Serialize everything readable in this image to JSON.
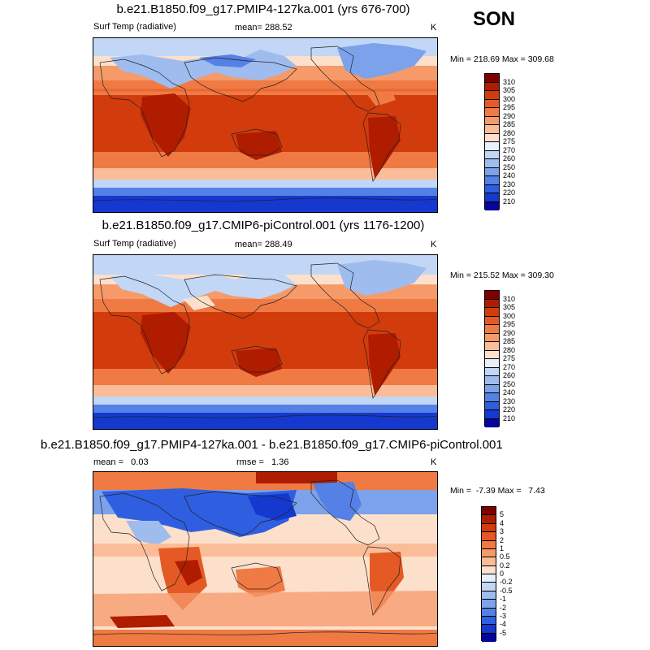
{
  "season": "SON",
  "panels": [
    {
      "title": "b.e21.B1850.f09_g17.PMIP4-127ka.001 (yrs 676-700)",
      "left": "Surf Temp (radiative)",
      "center": "mean= 288.52",
      "right": "K",
      "minmax": "Min = 218.69 Max = 309.68",
      "colorbar": {
        "labels": [
          "310",
          "305",
          "300",
          "295",
          "290",
          "285",
          "280",
          "275",
          "270",
          "260",
          "250",
          "240",
          "230",
          "220",
          "210"
        ],
        "colors": [
          "#7f0000",
          "#b01c00",
          "#d23b0c",
          "#e55a24",
          "#ef7a44",
          "#f69a6a",
          "#fbbd98",
          "#fde0cb",
          "#e8f0fb",
          "#c2d6f5",
          "#9fbcef",
          "#7ba2ea",
          "#5580e6",
          "#2f5ee0",
          "#1538cf",
          "#06069a"
        ]
      }
    },
    {
      "title": "b.e21.B1850.f09_g17.CMIP6-piControl.001 (yrs 1176-1200)",
      "left": "Surf Temp (radiative)",
      "center": "mean= 288.49",
      "right": "K",
      "minmax": "Min = 215.52 Max = 309.30",
      "colorbar": {
        "labels": [
          "310",
          "305",
          "300",
          "295",
          "290",
          "285",
          "280",
          "275",
          "270",
          "260",
          "250",
          "240",
          "230",
          "220",
          "210"
        ],
        "colors": [
          "#7f0000",
          "#b01c00",
          "#d23b0c",
          "#e55a24",
          "#ef7a44",
          "#f69a6a",
          "#fbbd98",
          "#fde0cb",
          "#e8f0fb",
          "#c2d6f5",
          "#9fbcef",
          "#7ba2ea",
          "#5580e6",
          "#2f5ee0",
          "#1538cf",
          "#06069a"
        ]
      }
    },
    {
      "title": "b.e21.B1850.f09_g17.PMIP4-127ka.001 - b.e21.B1850.f09_g17.CMIP6-piControl.001",
      "left": "mean =   0.03",
      "center": "rmse =   1.36",
      "right": "K",
      "minmax": "Min =  -7.39 Max =   7.43",
      "colorbar": {
        "labels": [
          "5",
          "4",
          "3",
          "2",
          "1",
          "0.5",
          "0.2",
          "0",
          "-0.2",
          "-0.5",
          "-1",
          "-2",
          "-3",
          "-4",
          "-5"
        ],
        "colors": [
          "#7f0000",
          "#b01c00",
          "#d23b0c",
          "#e55a24",
          "#ef7a44",
          "#f69a6a",
          "#fbbd98",
          "#fde0cb",
          "#e8f0fb",
          "#c2d6f5",
          "#9fbcef",
          "#7ba2ea",
          "#5580e6",
          "#2f5ee0",
          "#1538cf",
          "#06069a"
        ]
      }
    }
  ]
}
